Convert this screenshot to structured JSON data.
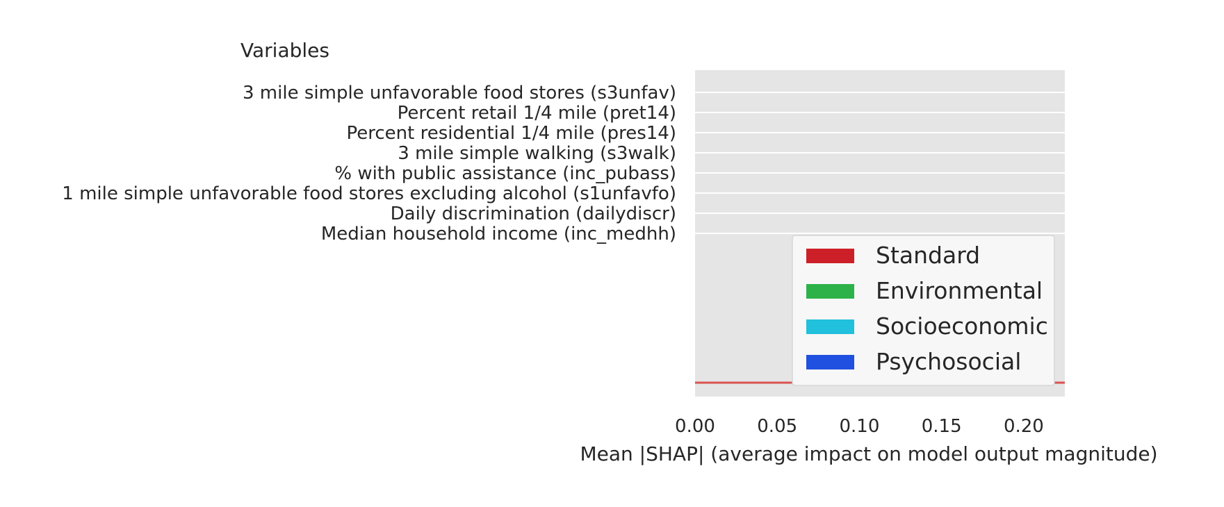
{
  "chart_data": {
    "type": "bar",
    "orientation": "horizontal",
    "ylabel": "Variables",
    "xlabel": "Mean |SHAP| (average impact on model output magnitude)",
    "categories": [
      "3 mile simple unfavorable food stores (s3unfav)",
      "Percent retail 1/4 mile (pret14)",
      "Percent residential 1/4 mile (pres14)",
      "3 mile simple walking (s3walk)",
      "% with public assistance (inc_pubass)",
      "1 mile simple unfavorable food stores excluding alcohol (s1unfavfo)",
      "Daily discrimination (dailydiscr)",
      "Median household income (inc_medhh)"
    ],
    "values": [
      0,
      0,
      0,
      0,
      0,
      0,
      0,
      0
    ],
    "xlim": [
      0,
      0.225
    ],
    "xticks": [
      0.0,
      0.05,
      0.1,
      0.15,
      0.2
    ],
    "xtick_labels": [
      "0.00",
      "0.05",
      "0.10",
      "0.15",
      "0.20"
    ],
    "grid": true,
    "background": "#e5e5e5",
    "reference_line": {
      "color": "#d9534f"
    },
    "legend": {
      "placement": "bottom-right",
      "entries": [
        {
          "label": "Standard",
          "color": "#cc1f27"
        },
        {
          "label": "Environmental",
          "color": "#2db24a"
        },
        {
          "label": "Socioeconomic",
          "color": "#21c0dc"
        },
        {
          "label": "Psychosocial",
          "color": "#2050e0"
        }
      ]
    }
  }
}
